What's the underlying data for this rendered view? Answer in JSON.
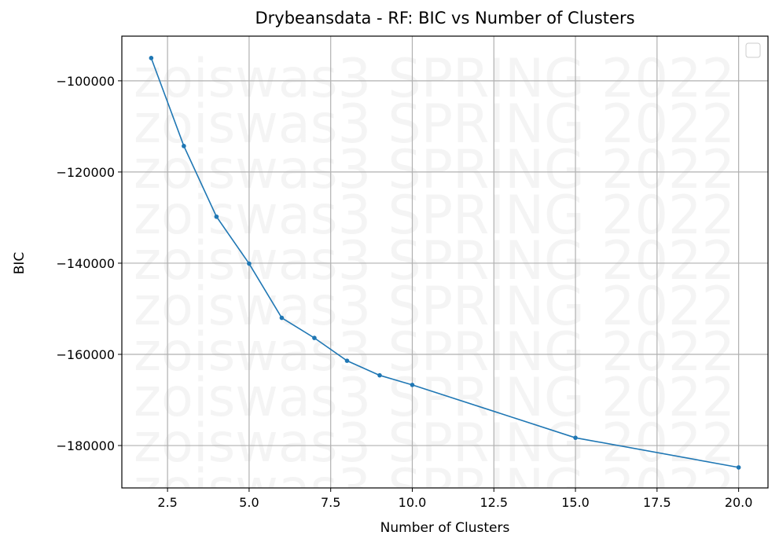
{
  "chart_data": {
    "type": "line",
    "title": "Drybeansdata - RF: BIC vs Number of Clusters",
    "xlabel": "Number of Clusters",
    "ylabel": "BIC",
    "xlim": [
      1.1,
      20.9
    ],
    "ylim": [
      -189300,
      -90200
    ],
    "xticks": [
      2.5,
      5.0,
      7.5,
      10.0,
      12.5,
      15.0,
      17.5,
      20.0
    ],
    "xtick_labels": [
      "2.5",
      "5.0",
      "7.5",
      "10.0",
      "12.5",
      "15.0",
      "17.5",
      "20.0"
    ],
    "yticks": [
      -100000,
      -120000,
      -140000,
      -160000,
      -180000
    ],
    "ytick_labels": [
      "−100000",
      "−120000",
      "−140000",
      "−160000",
      "−180000"
    ],
    "grid": true,
    "legend": "top-right (empty)",
    "watermark": "zoiswas3 SPRING 2022",
    "series": [
      {
        "color": "#1f77b4",
        "x": [
          2,
          3,
          4,
          5,
          6,
          7,
          8,
          9,
          10,
          15,
          20
        ],
        "y": [
          -95000,
          -114300,
          -129800,
          -140100,
          -152000,
          -156400,
          -161400,
          -164600,
          -166700,
          -178300,
          -184800
        ]
      }
    ]
  }
}
